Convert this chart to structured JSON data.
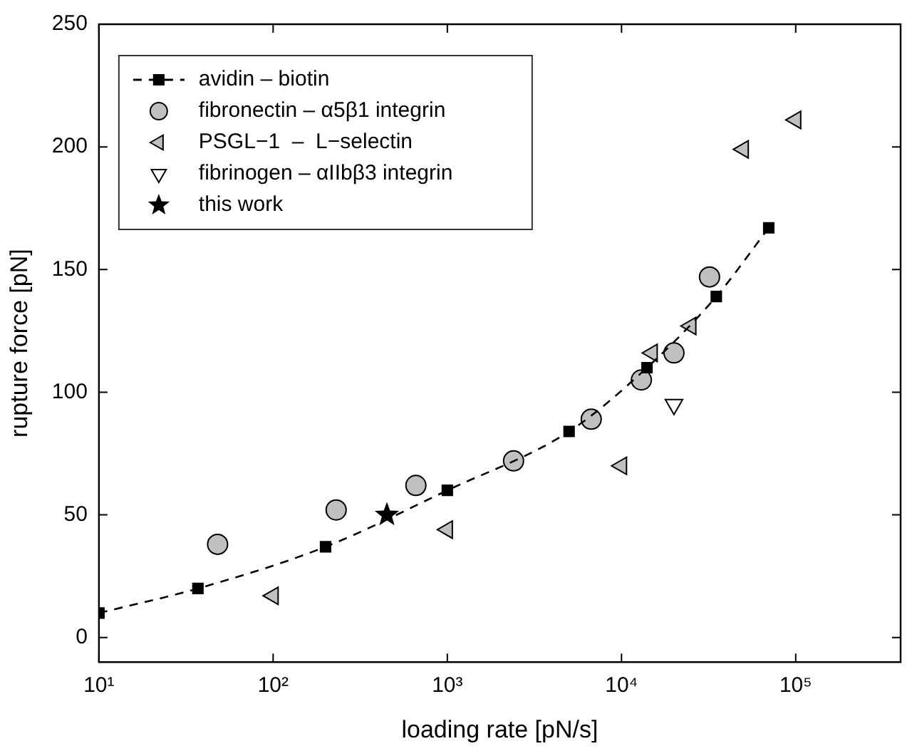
{
  "chart_data": {
    "type": "scatter",
    "xlabel": "loading rate [pN/s]",
    "ylabel": "rupture force [pN]",
    "log": "x",
    "xlim": [
      10,
      400000
    ],
    "xticks": [
      {
        "value": 10,
        "label": "10¹"
      },
      {
        "value": 100,
        "label": "10²"
      },
      {
        "value": 1000,
        "label": "10³"
      },
      {
        "value": 10000,
        "label": "10⁴"
      },
      {
        "value": 100000,
        "label": "10⁵"
      }
    ],
    "ylim": [
      -10,
      250
    ],
    "yticks": [
      0,
      50,
      100,
      150,
      200,
      250
    ],
    "grid": false,
    "legend": "top left",
    "series": [
      {
        "name": "avidin – biotin",
        "type": "line",
        "marker": "square",
        "line_style": "dashed",
        "color": "#000000",
        "x": [
          10,
          37,
          200,
          1000,
          5000,
          14000,
          35000,
          70000
        ],
        "values": [
          10,
          20,
          37,
          60,
          84,
          110,
          139,
          167
        ]
      },
      {
        "name": "fibronectin – α5β1 integrin",
        "marker": "circle",
        "color": "#c0c0c0",
        "x": [
          48,
          230,
          660,
          2400,
          6700,
          13000,
          20000,
          32000
        ],
        "values": [
          38,
          52,
          62,
          72,
          89,
          105,
          116,
          147
        ]
      },
      {
        "name": "PSGL−1  –  L−selectin",
        "marker": "triangle",
        "color": "#c0c0c0",
        "x": [
          100,
          1000,
          10000,
          15000,
          25000,
          50000,
          100000
        ],
        "values": [
          17,
          44,
          70,
          116,
          127,
          199,
          211
        ]
      },
      {
        "name": "fibrinogen – αIIbβ3 integrin",
        "marker": "triangle",
        "color": "#ffffff",
        "x": [
          20000
        ],
        "values": [
          95
        ]
      },
      {
        "name": "this work",
        "marker": "star",
        "color": "#000000",
        "x": [
          450
        ],
        "values": [
          50
        ]
      }
    ]
  }
}
